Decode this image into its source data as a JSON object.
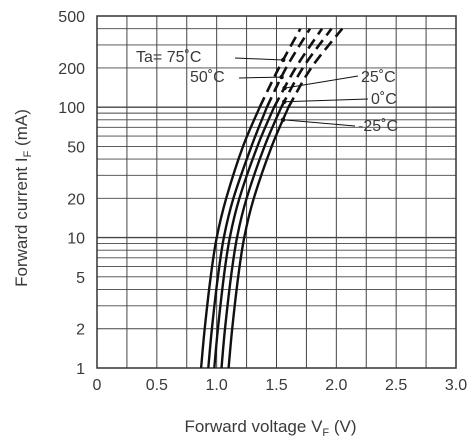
{
  "chart_data": {
    "type": "line",
    "xlabel": "Forward voltage V F (V)",
    "xlabel_main": "Forward voltage V",
    "xlabel_sub": "F",
    "xlabel_unit": " (V)",
    "ylabel_main": "Forward current I",
    "ylabel_sub": "F",
    "ylabel_unit": " (mA)",
    "x_scale": "linear",
    "y_scale": "log",
    "xlim": [
      0,
      3.0
    ],
    "ylim": [
      1,
      500
    ],
    "x_ticks": [
      "0",
      "0.5",
      "1.0",
      "1.5",
      "2.0",
      "2.5",
      "3.0"
    ],
    "x_tick_values": [
      0,
      0.5,
      1.0,
      1.5,
      2.0,
      2.5,
      3.0
    ],
    "y_ticks": [
      "1",
      "2",
      "5",
      "10",
      "20",
      "50",
      "100",
      "200",
      "500"
    ],
    "y_tick_values": [
      1,
      2,
      5,
      10,
      20,
      50,
      100,
      200,
      500
    ],
    "grid": true,
    "series": [
      {
        "name": "Ta= 75˚C",
        "line_style": "solid-then-dashed",
        "dash_from_y": 80,
        "points": [
          [
            0.87,
            1
          ],
          [
            0.9,
            2
          ],
          [
            0.95,
            5
          ],
          [
            1.0,
            10
          ],
          [
            1.08,
            20
          ],
          [
            1.22,
            50
          ],
          [
            1.36,
            100
          ],
          [
            1.52,
            200
          ],
          [
            1.7,
            400
          ]
        ]
      },
      {
        "name": "50˚C",
        "line_style": "solid-then-dashed",
        "dash_from_y": 80,
        "points": [
          [
            0.93,
            1
          ],
          [
            0.96,
            2
          ],
          [
            1.01,
            5
          ],
          [
            1.06,
            10
          ],
          [
            1.14,
            20
          ],
          [
            1.29,
            50
          ],
          [
            1.42,
            100
          ],
          [
            1.58,
            200
          ],
          [
            1.78,
            400
          ]
        ]
      },
      {
        "name": "25˚C",
        "line_style": "solid-then-dashed",
        "dash_from_y": 80,
        "points": [
          [
            0.98,
            1
          ],
          [
            1.01,
            2
          ],
          [
            1.06,
            5
          ],
          [
            1.11,
            10
          ],
          [
            1.19,
            20
          ],
          [
            1.34,
            50
          ],
          [
            1.48,
            100
          ],
          [
            1.66,
            200
          ],
          [
            1.88,
            400
          ]
        ]
      },
      {
        "name": "0˚C",
        "line_style": "solid-then-dashed",
        "dash_from_y": 80,
        "points": [
          [
            1.04,
            1
          ],
          [
            1.07,
            2
          ],
          [
            1.12,
            5
          ],
          [
            1.17,
            10
          ],
          [
            1.25,
            20
          ],
          [
            1.4,
            50
          ],
          [
            1.54,
            100
          ],
          [
            1.72,
            200
          ],
          [
            1.96,
            400
          ]
        ]
      },
      {
        "name": "-25˚C",
        "line_style": "solid-then-dashed",
        "dash_from_y": 80,
        "points": [
          [
            1.1,
            1
          ],
          [
            1.13,
            2
          ],
          [
            1.18,
            5
          ],
          [
            1.23,
            10
          ],
          [
            1.31,
            20
          ],
          [
            1.46,
            50
          ],
          [
            1.6,
            100
          ],
          [
            1.79,
            200
          ],
          [
            2.05,
            400
          ]
        ]
      }
    ],
    "labels": [
      {
        "text": "Ta= 75˚C",
        "series": 0
      },
      {
        "text": "50˚C",
        "series": 1
      },
      {
        "text": "25˚C",
        "series": 2
      },
      {
        "text": "0˚C",
        "series": 3
      },
      {
        "text": "-25˚C",
        "series": 4
      }
    ],
    "colors": {
      "curve": "#111111",
      "grid": "#444444",
      "text": "#3a3a3a"
    }
  }
}
